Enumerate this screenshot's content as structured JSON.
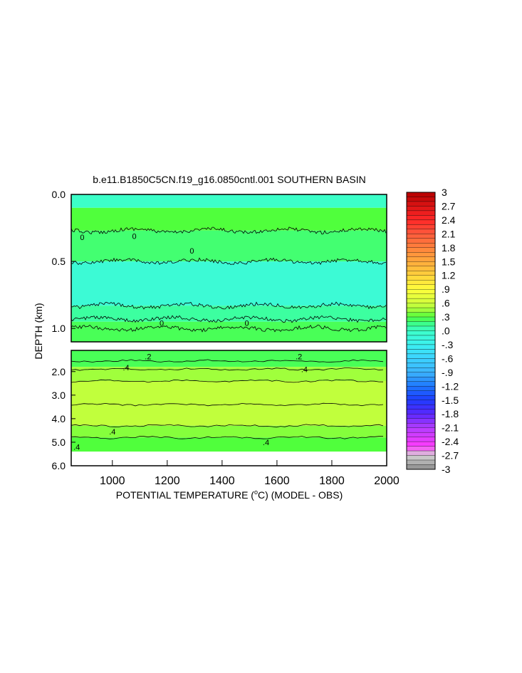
{
  "chart_data": {
    "type": "heatmap",
    "title": "b.e11.B1850C5CN.f19_g16.0850cntl.001 SOUTHERN BASIN",
    "xlabel": "POTENTIAL TEMPERATURE (",
    "xlabel_unit": "o",
    "xlabel_suffix": "C) (MODEL - OBS)",
    "ylabel": "DEPTH (km)",
    "xlim": [
      850,
      2000
    ],
    "x_ticks": [
      {
        "value": 1000,
        "label": "1000"
      },
      {
        "value": 1200,
        "label": "1200"
      },
      {
        "value": 1400,
        "label": "1400"
      },
      {
        "value": 1600,
        "label": "1600"
      },
      {
        "value": 1800,
        "label": "1800"
      },
      {
        "value": 2000,
        "label": "2000"
      }
    ],
    "upper_panel": {
      "ylim": [
        0.0,
        1.1
      ],
      "y_ticks": [
        {
          "value": 0.0,
          "label": "0.0"
        },
        {
          "value": 0.5,
          "label": "0.5"
        },
        {
          "value": 1.0,
          "label": "1.0"
        }
      ],
      "bands": [
        {
          "top": 0.0,
          "bottom": 0.1,
          "value": 0.0
        },
        {
          "top": 0.1,
          "bottom": 0.27,
          "value": 0.3
        },
        {
          "top": 0.27,
          "bottom": 0.5,
          "value": 0.2
        },
        {
          "top": 0.5,
          "bottom": 0.83,
          "value": -0.1
        },
        {
          "top": 0.83,
          "bottom": 0.95,
          "value": 0.1
        },
        {
          "top": 0.95,
          "bottom": 1.1,
          "value": 0.25
        }
      ],
      "contours": [
        0.27,
        0.5,
        0.83,
        0.93,
        1.0
      ],
      "labels": [
        {
          "x": 890,
          "y": 0.32,
          "text": "0"
        },
        {
          "x": 1080,
          "y": 0.31,
          "text": "0"
        },
        {
          "x": 1290,
          "y": 0.42,
          "text": "0"
        },
        {
          "x": 1180,
          "y": 0.96,
          "text": "0"
        },
        {
          "x": 1490,
          "y": 0.96,
          "text": "0"
        }
      ]
    },
    "lower_panel": {
      "ylim": [
        1.1,
        6.0
      ],
      "y_ticks": [
        {
          "value": 2.0,
          "label": "2.0"
        },
        {
          "value": 3.0,
          "label": "3.0"
        },
        {
          "value": 4.0,
          "label": "4.0"
        },
        {
          "value": 5.0,
          "label": "5.0"
        },
        {
          "value": 6.0,
          "label": "6.0"
        }
      ],
      "data_bottom": 5.4,
      "bands": [
        {
          "top": 1.1,
          "bottom": 1.8,
          "value": 0.25
        },
        {
          "top": 1.8,
          "bottom": 2.4,
          "value": 0.45
        },
        {
          "top": 2.4,
          "bottom": 4.3,
          "value": 0.55
        },
        {
          "top": 4.3,
          "bottom": 4.8,
          "value": 0.4
        },
        {
          "top": 4.8,
          "bottom": 5.4,
          "value": 0.3
        }
      ],
      "contours": [
        1.55,
        1.9,
        2.4,
        3.4,
        4.3,
        4.8
      ],
      "labels": [
        {
          "x": 1130,
          "y": 1.35,
          "text": ".2"
        },
        {
          "x": 1680,
          "y": 1.35,
          "text": ".2"
        },
        {
          "x": 1050,
          "y": 1.82,
          "text": ".4"
        },
        {
          "x": 1700,
          "y": 1.9,
          "text": ".4"
        },
        {
          "x": 1000,
          "y": 4.55,
          "text": ".4"
        },
        {
          "x": 1560,
          "y": 5.0,
          "text": ".4"
        },
        {
          "x": 870,
          "y": 5.2,
          "text": ".4"
        }
      ]
    },
    "colorbar": {
      "min": -3.0,
      "max": 3.0,
      "ticks": [
        {
          "value": 3.0,
          "label": "3"
        },
        {
          "value": 2.7,
          "label": "2.7"
        },
        {
          "value": 2.4,
          "label": "2.4"
        },
        {
          "value": 2.1,
          "label": "2.1"
        },
        {
          "value": 1.8,
          "label": "1.8"
        },
        {
          "value": 1.5,
          "label": "1.5"
        },
        {
          "value": 1.2,
          "label": "1.2"
        },
        {
          "value": 0.9,
          "label": ".9"
        },
        {
          "value": 0.6,
          "label": ".6"
        },
        {
          "value": 0.3,
          "label": ".3"
        },
        {
          "value": 0.0,
          "label": ".0"
        },
        {
          "value": -0.3,
          "label": "-.3"
        },
        {
          "value": -0.6,
          "label": "-.6"
        },
        {
          "value": -0.9,
          "label": "-.9"
        },
        {
          "value": -1.2,
          "label": "-1.2"
        },
        {
          "value": -1.5,
          "label": "-1.5"
        },
        {
          "value": -1.8,
          "label": "-1.8"
        },
        {
          "value": -2.1,
          "label": "-2.1"
        },
        {
          "value": -2.4,
          "label": "-2.4"
        },
        {
          "value": -2.7,
          "label": "-2.7"
        },
        {
          "value": -3.0,
          "label": "-3"
        }
      ]
    }
  }
}
